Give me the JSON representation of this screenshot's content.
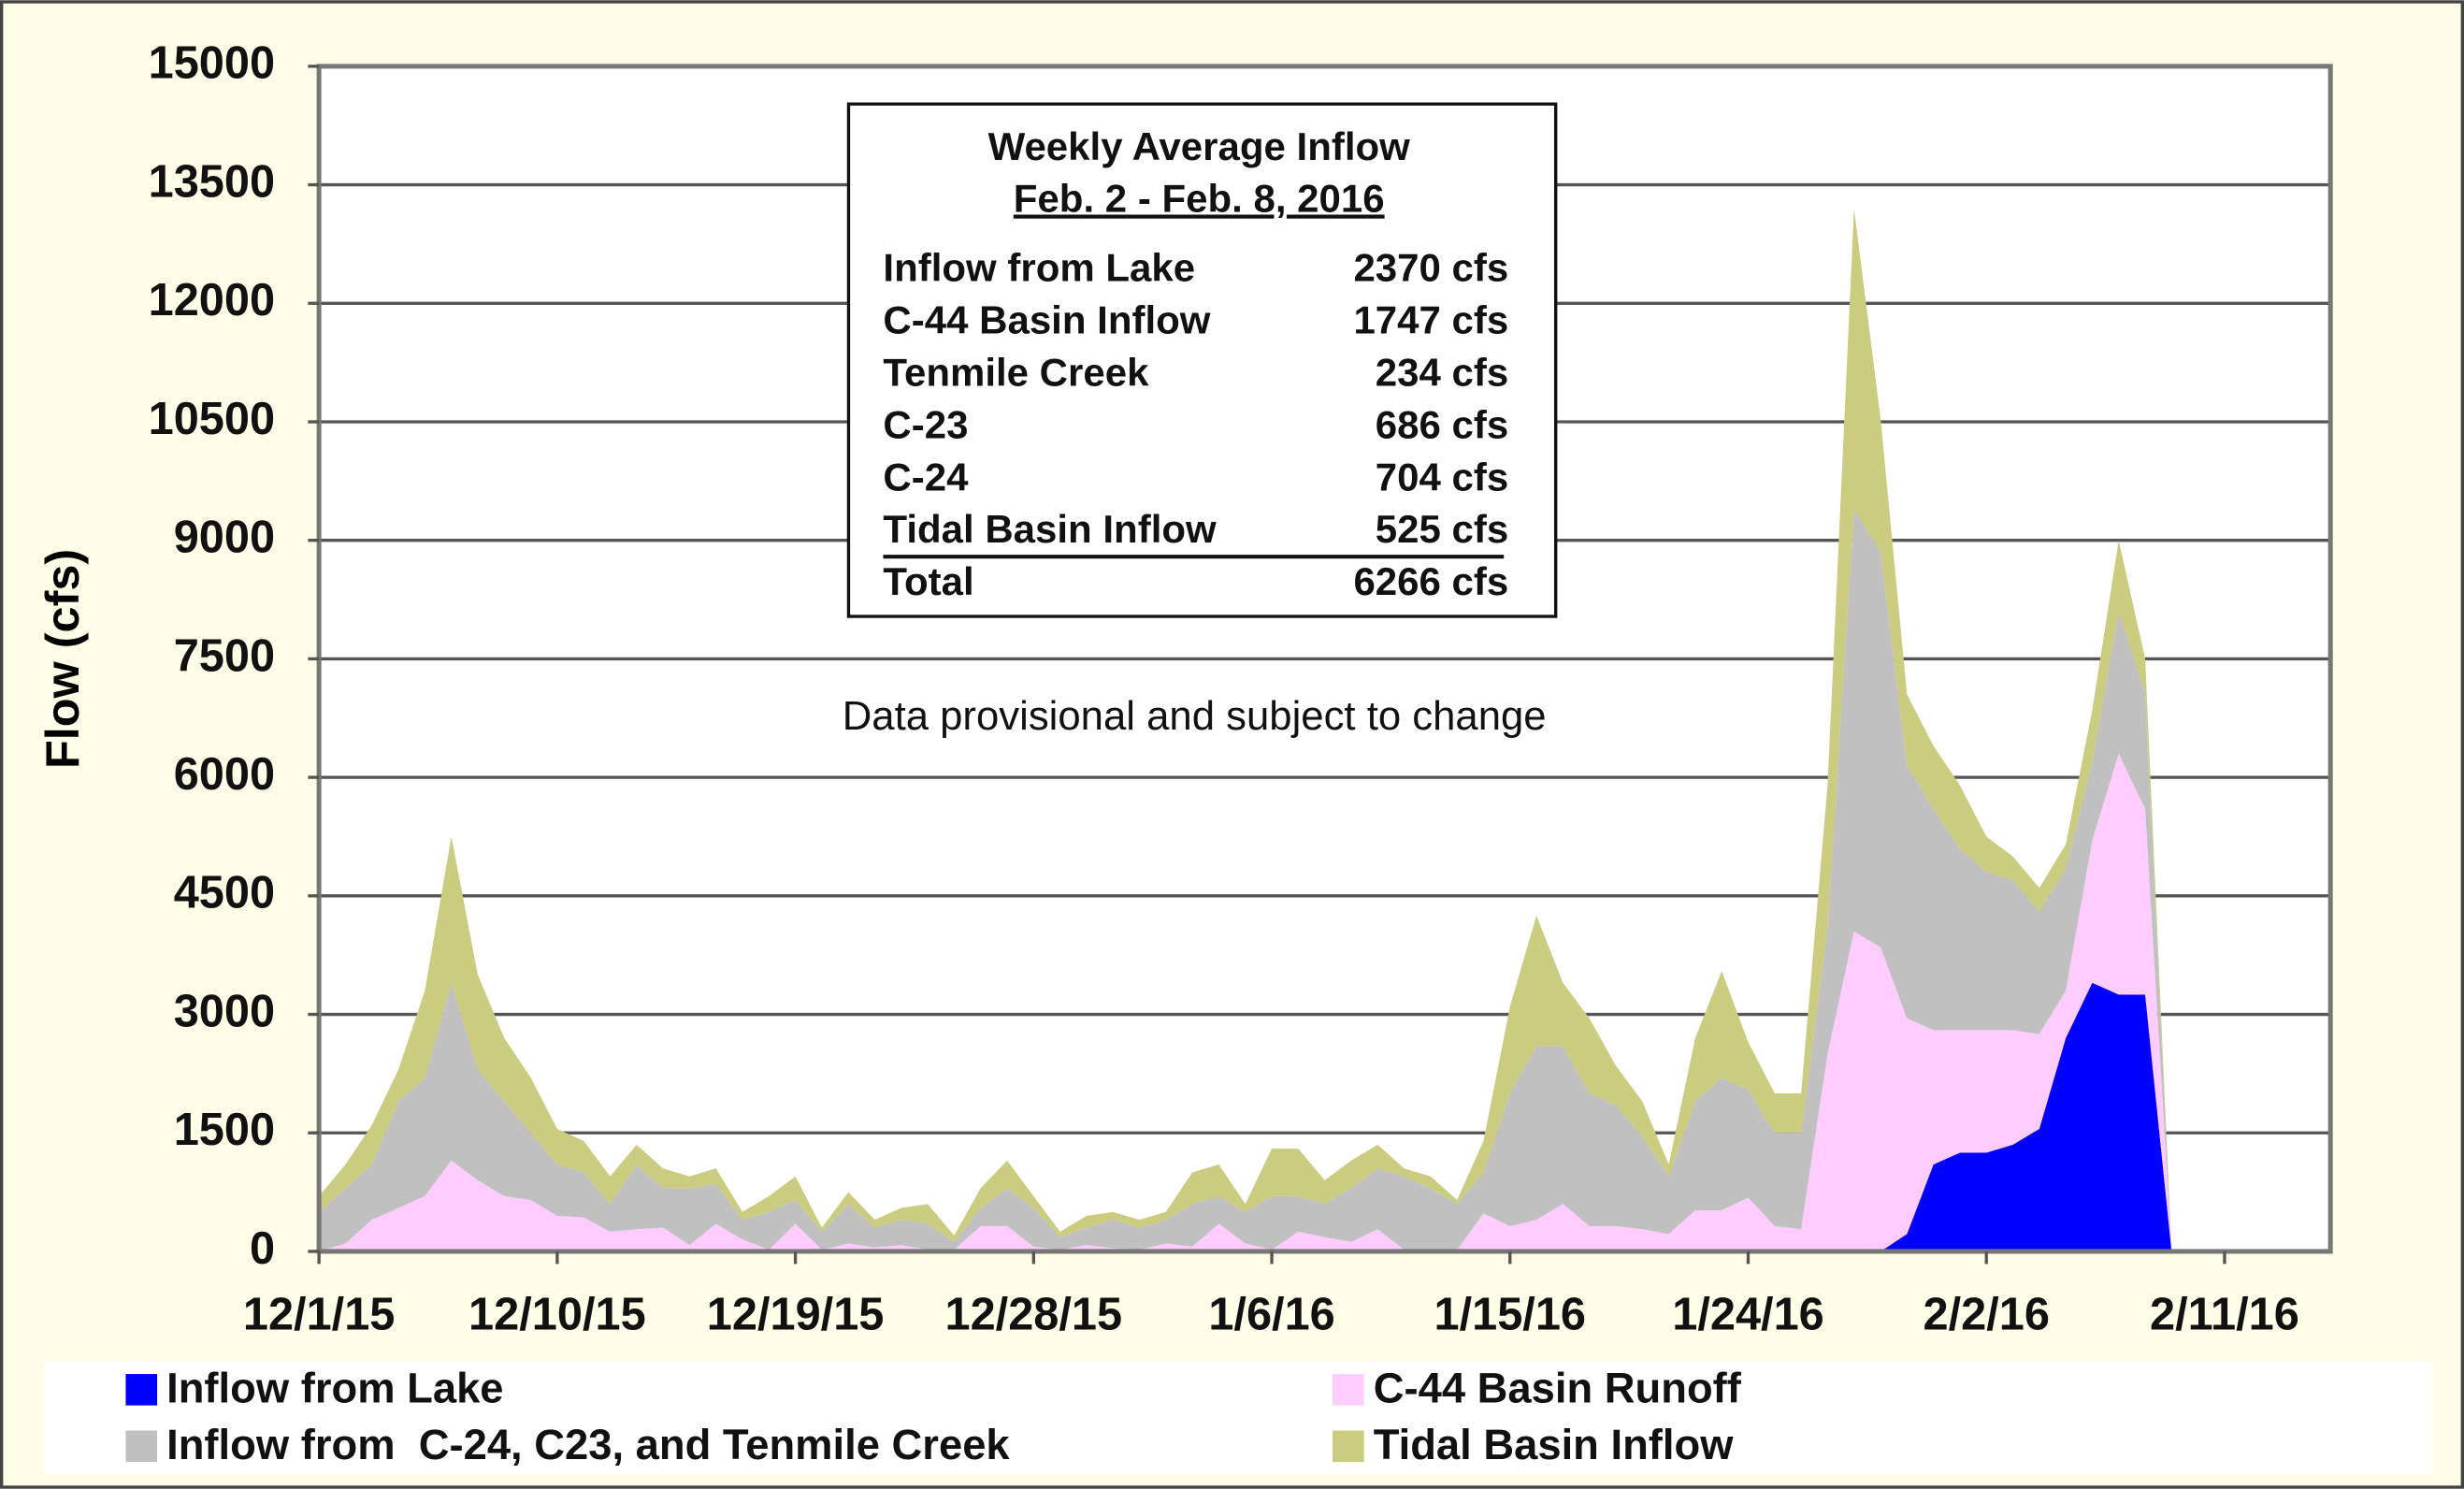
{
  "chart_data": {
    "type": "stacked_area",
    "ylabel": "Flow (cfs)",
    "annotation": "Data provisional and subject to change",
    "x": [
      "12/1/15",
      "12/2/15",
      "12/3/15",
      "12/4/15",
      "12/5/15",
      "12/6/15",
      "12/7/15",
      "12/8/15",
      "12/9/15",
      "12/10/15",
      "12/11/15",
      "12/12/15",
      "12/13/15",
      "12/14/15",
      "12/15/15",
      "12/16/15",
      "12/17/15",
      "12/18/15",
      "12/19/15",
      "12/20/15",
      "12/21/15",
      "12/22/15",
      "12/23/15",
      "12/24/15",
      "12/25/15",
      "12/26/15",
      "12/27/15",
      "12/28/15",
      "12/29/15",
      "12/30/15",
      "12/31/15",
      "1/1/16",
      "1/2/16",
      "1/3/16",
      "1/4/16",
      "1/5/16",
      "1/6/16",
      "1/7/16",
      "1/8/16",
      "1/9/16",
      "1/10/16",
      "1/11/16",
      "1/12/16",
      "1/13/16",
      "1/14/16",
      "1/15/16",
      "1/16/16",
      "1/17/16",
      "1/18/16",
      "1/19/16",
      "1/20/16",
      "1/21/16",
      "1/22/16",
      "1/23/16",
      "1/24/16",
      "1/25/16",
      "1/26/16",
      "1/27/16",
      "1/28/16",
      "1/29/16",
      "1/30/16",
      "1/31/16",
      "2/1/16",
      "2/2/16",
      "2/3/16",
      "2/4/16",
      "2/5/16",
      "2/6/16",
      "2/7/16",
      "2/8/16",
      "2/9/16"
    ],
    "series": [
      {
        "name": "Inflow from Lake",
        "color": "#0000ff",
        "values": [
          0,
          0,
          0,
          0,
          0,
          0,
          0,
          0,
          0,
          0,
          0,
          0,
          0,
          0,
          0,
          0,
          0,
          0,
          0,
          0,
          0,
          0,
          0,
          0,
          0,
          0,
          0,
          0,
          0,
          0,
          0,
          0,
          0,
          0,
          0,
          0,
          0,
          0,
          0,
          0,
          0,
          0,
          0,
          0,
          0,
          0,
          0,
          0,
          0,
          0,
          0,
          0,
          0,
          0,
          0,
          0,
          0,
          0,
          0,
          0,
          220,
          1100,
          1250,
          1250,
          1350,
          1550,
          2700,
          3400,
          3250,
          3250,
          0
        ]
      },
      {
        "name": "C-44 Basin Runoff",
        "color": "#ffccff",
        "values": [
          0,
          100,
          400,
          550,
          700,
          1150,
          900,
          700,
          650,
          450,
          430,
          250,
          280,
          300,
          80,
          350,
          150,
          20,
          350,
          20,
          100,
          50,
          80,
          20,
          20,
          320,
          320,
          60,
          20,
          80,
          40,
          20,
          100,
          60,
          350,
          100,
          20,
          250,
          180,
          120,
          280,
          20,
          20,
          20,
          480,
          320,
          400,
          600,
          320,
          320,
          280,
          220,
          520,
          520,
          680,
          320,
          280,
          2500,
          4050,
          3850,
          2730,
          1700,
          1550,
          1550,
          1450,
          1200,
          600,
          1800,
          3050,
          2350,
          0
        ]
      },
      {
        "name": "Inflow from  C-24, C23, and Tenmile Creek",
        "color": "#c0c0c0",
        "values": [
          500,
          700,
          700,
          1350,
          1500,
          2250,
          1400,
          1200,
          850,
          650,
          570,
          350,
          820,
          500,
          720,
          500,
          250,
          480,
          300,
          230,
          500,
          250,
          320,
          330,
          100,
          230,
          480,
          490,
          160,
          220,
          360,
          280,
          300,
          540,
          350,
          400,
          680,
          450,
          420,
          680,
          770,
          930,
          780,
          580,
          520,
          1680,
          2200,
          2000,
          1680,
          1530,
          1170,
          730,
          1380,
          1680,
          1370,
          1180,
          1220,
          1600,
          5350,
          5000,
          3200,
          2800,
          2300,
          2000,
          1900,
          1550,
          1550,
          1000,
          1800,
          1450,
          0
        ]
      },
      {
        "name": "Tidal Basin Inflow",
        "color": "#cccc80",
        "values": [
          200,
          300,
          500,
          400,
          1100,
          1850,
          1200,
          800,
          700,
          450,
          400,
          350,
          250,
          250,
          150,
          200,
          100,
          200,
          300,
          50,
          150,
          100,
          150,
          250,
          80,
          250,
          350,
          150,
          70,
          150,
          100,
          100,
          100,
          400,
          400,
          100,
          600,
          600,
          300,
          350,
          300,
          100,
          150,
          50,
          400,
          1100,
          1650,
          800,
          950,
          500,
          450,
          150,
          800,
          1350,
          600,
          500,
          500,
          1800,
          3800,
          1700,
          900,
          800,
          800,
          450,
          300,
          300,
          300,
          650,
          900,
          450,
          0
        ]
      }
    ],
    "xlim": [
      "12/1/15",
      "2/15/16"
    ],
    "xticks": [
      "12/1/15",
      "12/10/15",
      "12/19/15",
      "12/28/15",
      "1/6/16",
      "1/15/16",
      "1/24/16",
      "2/2/16",
      "2/11/16"
    ],
    "ylim": [
      0,
      15000
    ],
    "yticks": [
      0,
      1500,
      3000,
      4500,
      6000,
      7500,
      9000,
      10500,
      12000,
      13500,
      15000
    ],
    "grid": true,
    "legend": "bottom",
    "inset": {
      "title": "Weekly Average Inflow",
      "subtitle": "Feb. 2 - Feb. 8, 2016",
      "rows": [
        [
          "Inflow from Lake",
          "2370 cfs"
        ],
        [
          "C-44 Basin Inflow",
          "1747 cfs"
        ],
        [
          "Tenmile Creek",
          "234 cfs"
        ],
        [
          "C-23",
          "686 cfs"
        ],
        [
          "C-24",
          "704 cfs"
        ],
        [
          "Tidal Basin Inflow",
          "525 cfs"
        ],
        [
          "Total",
          "6266 cfs"
        ]
      ]
    }
  }
}
